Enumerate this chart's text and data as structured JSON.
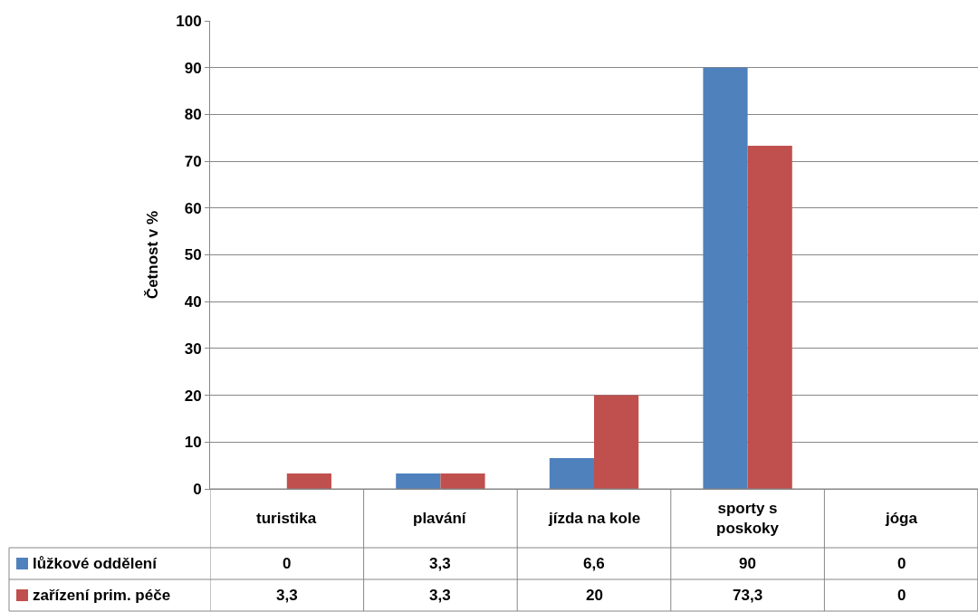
{
  "chart_data": {
    "type": "bar",
    "ylabel": "Četnost v %",
    "categories": [
      "turistika",
      "plavání",
      "jízda na kole",
      "sporty s poskoky",
      "jóga"
    ],
    "series": [
      {
        "name": "lůžkové oddělení",
        "color": "#4f81bd",
        "values": [
          0,
          3.3,
          6.6,
          90,
          0
        ],
        "value_labels": [
          "0",
          "3,3",
          "6,6",
          "90",
          "0"
        ]
      },
      {
        "name": "zařízení prim. péče",
        "color": "#c0504d",
        "values": [
          3.3,
          3.3,
          20,
          73.3,
          0
        ],
        "value_labels": [
          "3,3",
          "3,3",
          "20",
          "73,3",
          "0"
        ]
      }
    ],
    "ylim": [
      0,
      100
    ],
    "yticks": [
      0,
      10,
      20,
      30,
      40,
      50,
      60,
      70,
      80,
      90,
      100
    ],
    "grid": "y",
    "legend": "bottom left"
  }
}
